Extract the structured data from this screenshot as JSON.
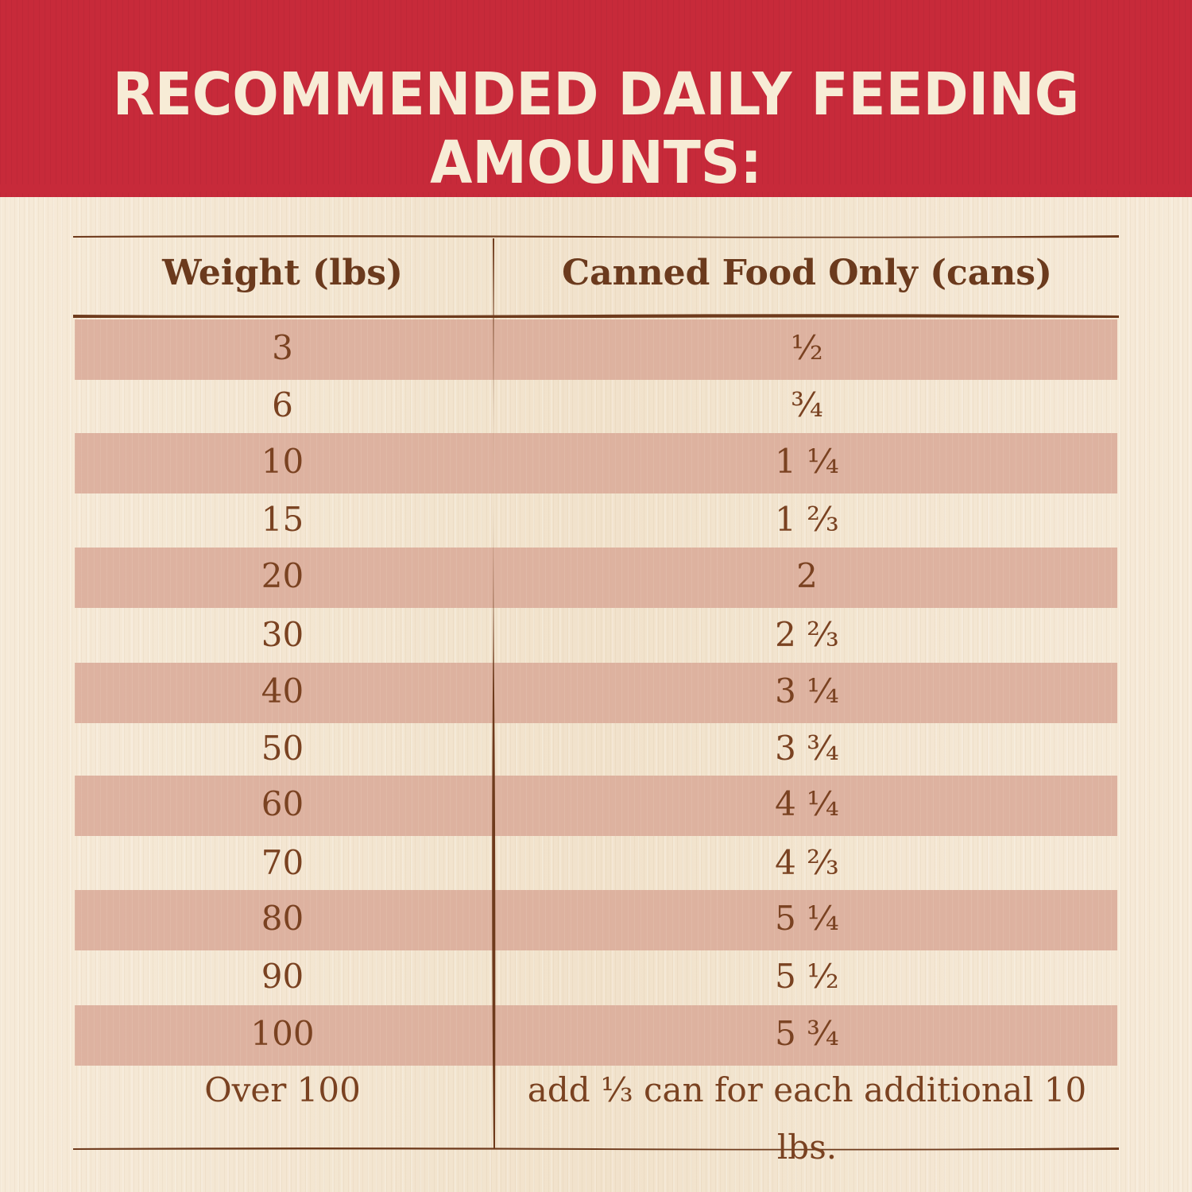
{
  "title": "RECOMMENDED DAILY FEEDING AMOUNTS:",
  "table": {
    "headers": [
      "Weight (lbs)",
      "Canned Food Only (cans)"
    ],
    "rows": [
      {
        "weight": "3",
        "cans": "½"
      },
      {
        "weight": "6",
        "cans": "¾"
      },
      {
        "weight": "10",
        "cans": "1 ¼"
      },
      {
        "weight": "15",
        "cans": "1 ⅔"
      },
      {
        "weight": "20",
        "cans": "2"
      },
      {
        "weight": "30",
        "cans": "2 ⅔"
      },
      {
        "weight": "40",
        "cans": "3 ¼"
      },
      {
        "weight": "50",
        "cans": "3 ¾"
      },
      {
        "weight": "60",
        "cans": "4 ¼"
      },
      {
        "weight": "70",
        "cans": "4 ⅔"
      },
      {
        "weight": "80",
        "cans": "5 ¼"
      },
      {
        "weight": "90",
        "cans": "5 ½"
      },
      {
        "weight": "100",
        "cans": "5 ¾"
      },
      {
        "weight": "Over 100",
        "cans": "add ⅓ can for each additional 10 lbs."
      }
    ]
  },
  "colors": {
    "banner": "#c72a3a",
    "title_text": "#f7ecd6",
    "stripe": "#dcae9c",
    "text": "#7a4221",
    "rule": "#6e3a1c"
  }
}
